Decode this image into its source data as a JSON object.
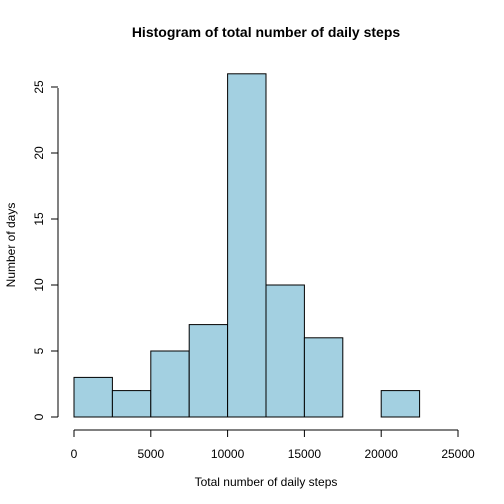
{
  "chart_data": {
    "type": "bar",
    "title": "Histogram of total number of daily steps",
    "xlabel": "Total number of daily steps",
    "ylabel": "Number of days",
    "bar_color": "#a3d0e1",
    "border_color": "#000000",
    "bins": [
      {
        "start": 0,
        "end": 2500,
        "value": 3
      },
      {
        "start": 2500,
        "end": 5000,
        "value": 2
      },
      {
        "start": 5000,
        "end": 7500,
        "value": 5
      },
      {
        "start": 7500,
        "end": 10000,
        "value": 7
      },
      {
        "start": 10000,
        "end": 12500,
        "value": 26
      },
      {
        "start": 12500,
        "end": 15000,
        "value": 10
      },
      {
        "start": 15000,
        "end": 17500,
        "value": 6
      },
      {
        "start": 17500,
        "end": 20000,
        "value": 0
      },
      {
        "start": 20000,
        "end": 22500,
        "value": 2
      },
      {
        "start": 22500,
        "end": 25000,
        "value": 0
      }
    ],
    "xlim": [
      0,
      25000
    ],
    "ylim": [
      0,
      26
    ],
    "x_ticks": [
      {
        "value": 0,
        "label": "0"
      },
      {
        "value": 5000,
        "label": "5000"
      },
      {
        "value": 10000,
        "label": "10000"
      },
      {
        "value": 15000,
        "label": "15000"
      },
      {
        "value": 20000,
        "label": "20000"
      },
      {
        "value": 25000,
        "label": "25000"
      }
    ],
    "y_ticks": [
      {
        "value": 0,
        "label": "0"
      },
      {
        "value": 5,
        "label": "5"
      },
      {
        "value": 10,
        "label": "10"
      },
      {
        "value": 15,
        "label": "15"
      },
      {
        "value": 20,
        "label": "20"
      },
      {
        "value": 25,
        "label": "25"
      }
    ],
    "grid": false,
    "legend": "none"
  }
}
